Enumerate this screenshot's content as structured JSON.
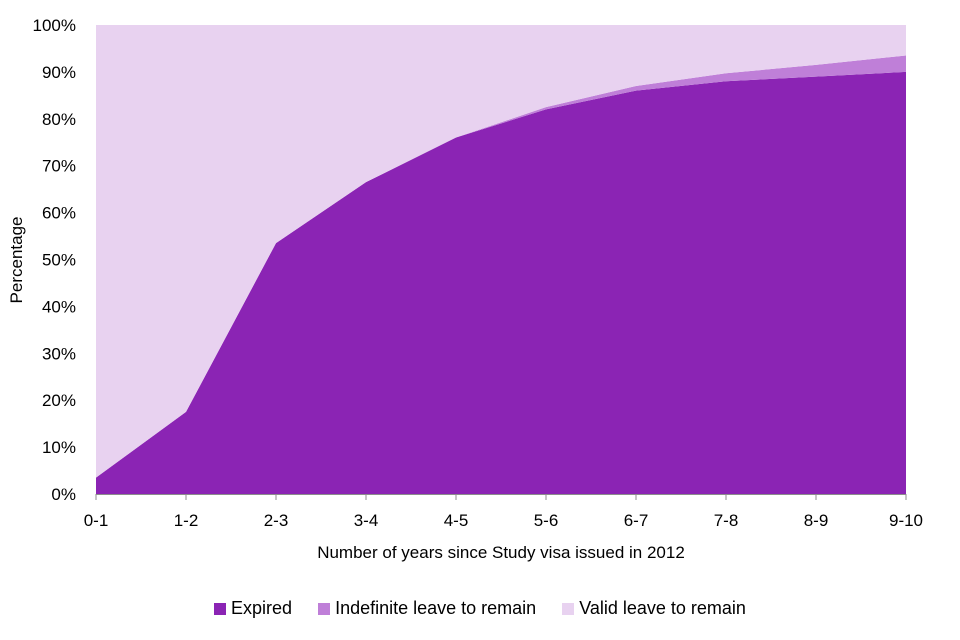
{
  "chart_data": {
    "type": "area",
    "stacked": true,
    "xlabel": "Number of years since Study visa issued in 2012",
    "ylabel": "Percentage",
    "ylim": [
      0,
      100
    ],
    "y_ticks": [
      0,
      10,
      20,
      30,
      40,
      50,
      60,
      70,
      80,
      90,
      100
    ],
    "y_tick_suffix": "%",
    "categories": [
      "0-1",
      "1-2",
      "2-3",
      "3-4",
      "4-5",
      "5-6",
      "6-7",
      "7-8",
      "8-9",
      "9-10"
    ],
    "series": [
      {
        "name": "Expired",
        "color": "#8b24b4",
        "values": [
          3.5,
          17.5,
          53.5,
          66.5,
          76,
          82,
          86,
          88,
          89,
          90
        ]
      },
      {
        "name": "Indefinite leave to remain",
        "color": "#bf7fd8",
        "values": [
          0,
          0,
          0,
          0,
          0,
          0.5,
          1,
          1.7,
          2.5,
          3.5
        ]
      },
      {
        "name": "Valid leave to remain",
        "color": "#e8d2f0",
        "values": [
          96.5,
          82.5,
          46.5,
          33.5,
          24,
          17.5,
          13,
          10.3,
          8.5,
          6.5
        ]
      }
    ],
    "grid": false,
    "legend_position": "bottom"
  }
}
